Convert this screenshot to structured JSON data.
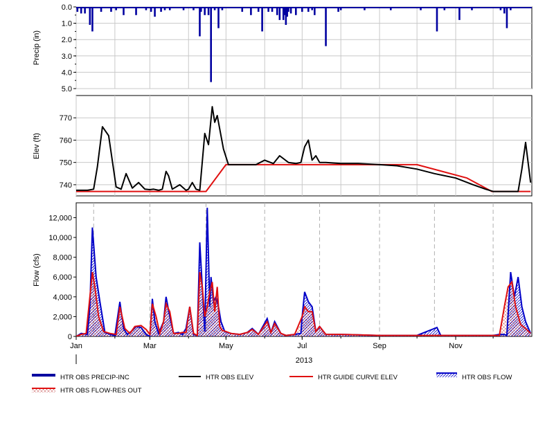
{
  "chart_data": [
    {
      "type": "bar",
      "id": "precip",
      "ylabel": "Precip (in)",
      "ylim": [
        5.0,
        0.0
      ],
      "yticks": [
        "0.0",
        "1.0",
        "2.0",
        "3.0",
        "4.0",
        "5.0"
      ],
      "ytick_values": [
        0,
        1,
        2,
        3,
        4,
        5
      ],
      "grid": true,
      "series": [
        {
          "name": "HTR OBS PRECIP-INC",
          "color": "#0000a0",
          "x": [
            "2013-01-02",
            "2013-01-05",
            "2013-01-08",
            "2013-01-12",
            "2013-01-14",
            "2013-01-21",
            "2013-01-29",
            "2013-02-02",
            "2013-02-08",
            "2013-02-18",
            "2013-02-26",
            "2013-03-02",
            "2013-03-05",
            "2013-03-10",
            "2013-03-13",
            "2013-03-17",
            "2013-03-28",
            "2013-04-05",
            "2013-04-10",
            "2013-04-11",
            "2013-04-14",
            "2013-04-17",
            "2013-04-19",
            "2013-04-22",
            "2013-04-25",
            "2013-04-28",
            "2013-05-14",
            "2013-05-21",
            "2013-05-27",
            "2013-05-30",
            "2013-06-04",
            "2013-06-07",
            "2013-06-11",
            "2013-06-13",
            "2013-06-16",
            "2013-06-17",
            "2013-06-18",
            "2013-06-19",
            "2013-06-20",
            "2013-06-22",
            "2013-06-26",
            "2013-07-01",
            "2013-07-06",
            "2013-07-09",
            "2013-07-11",
            "2013-07-20",
            "2013-07-30",
            "2013-08-01",
            "2013-08-20",
            "2013-09-10",
            "2013-10-04",
            "2013-10-17",
            "2013-10-23",
            "2013-11-04",
            "2013-11-14",
            "2013-12-07",
            "2013-12-10",
            "2013-12-12",
            "2013-12-15"
          ],
          "values": [
            0.3,
            0.4,
            0.4,
            1.1,
            1.5,
            0.3,
            0.3,
            0.2,
            0.5,
            0.5,
            0.2,
            0.3,
            0.6,
            0.3,
            0.2,
            0.2,
            0.2,
            0.2,
            1.8,
            0.3,
            0.5,
            0.5,
            4.6,
            0.2,
            1.3,
            0.2,
            0.3,
            0.5,
            0.3,
            1.5,
            0.3,
            0.3,
            0.5,
            0.8,
            0.8,
            0.5,
            1.1,
            0.6,
            0.3,
            0.4,
            0.5,
            0.3,
            0.3,
            0.2,
            0.5,
            2.4,
            0.3,
            0.2,
            0.2,
            0.2,
            0.2,
            1.5,
            0.2,
            0.8,
            0.2,
            0.2,
            0.4,
            1.3,
            0.2
          ]
        }
      ]
    },
    {
      "type": "line",
      "id": "elev",
      "ylabel": "Elev (ft)",
      "ylim": [
        735,
        780
      ],
      "yticks": [
        "740",
        "750",
        "760",
        "770"
      ],
      "ytick_values": [
        740,
        750,
        760,
        770
      ],
      "grid": true,
      "series": [
        {
          "name": "HTR OBS ELEV",
          "color": "#000000",
          "x": [
            "2013-01-01",
            "2013-01-06",
            "2013-01-10",
            "2013-01-15",
            "2013-01-18",
            "2013-01-22",
            "2013-01-27",
            "2013-02-02",
            "2013-02-06",
            "2013-02-10",
            "2013-02-15",
            "2013-02-20",
            "2013-02-25",
            "2013-03-01",
            "2013-03-04",
            "2013-03-08",
            "2013-03-11",
            "2013-03-14",
            "2013-03-16",
            "2013-03-19",
            "2013-03-25",
            "2013-03-30",
            "2013-04-01",
            "2013-04-04",
            "2013-04-07",
            "2013-04-10",
            "2013-04-14",
            "2013-04-17",
            "2013-04-20",
            "2013-04-22",
            "2013-04-24",
            "2013-04-26",
            "2013-04-29",
            "2013-05-03",
            "2013-05-10",
            "2013-05-15",
            "2013-05-25",
            "2013-06-01",
            "2013-06-08",
            "2013-06-13",
            "2013-06-20",
            "2013-06-26",
            "2013-06-30",
            "2013-07-03",
            "2013-07-06",
            "2013-07-09",
            "2013-07-12",
            "2013-07-15",
            "2013-07-20",
            "2013-08-01",
            "2013-08-15",
            "2013-09-01",
            "2013-09-15",
            "2013-10-01",
            "2013-10-15",
            "2013-11-01",
            "2013-11-15",
            "2013-11-25",
            "2013-12-01",
            "2013-12-15",
            "2013-12-18",
            "2013-12-21",
            "2013-12-24",
            "2013-12-27",
            "2013-12-31"
          ],
          "values": [
            737.5,
            737.5,
            737.5,
            738,
            748,
            766,
            762,
            739,
            738,
            745,
            738.5,
            741,
            738,
            737.8,
            738,
            737.5,
            738,
            746,
            744,
            738,
            740,
            737.5,
            738,
            741,
            738,
            737.5,
            763,
            758,
            775,
            768,
            771,
            765,
            756,
            749,
            749,
            749,
            749,
            751,
            749.5,
            753,
            750,
            749.5,
            750,
            757,
            760,
            751,
            753,
            750,
            750,
            749.5,
            749.5,
            749,
            748.5,
            747,
            745,
            743,
            740,
            738,
            737,
            737,
            737,
            737,
            747,
            759,
            741
          ]
        },
        {
          "name": "HTR GUIDE CURVE ELEV",
          "color": "#e01010",
          "x": [
            "2013-01-01",
            "2013-04-15",
            "2013-05-01",
            "2013-10-01",
            "2013-11-10",
            "2013-11-30",
            "2013-12-31"
          ],
          "values": [
            737,
            737,
            749,
            749,
            743,
            737,
            737
          ]
        }
      ]
    },
    {
      "type": "area",
      "id": "flow",
      "ylabel": "Flow (cfs)",
      "xlabel": "2013",
      "ylim": [
        0,
        13500
      ],
      "yticks": [
        "0",
        "2,000",
        "4,000",
        "6,000",
        "8,000",
        "10,000",
        "12,000"
      ],
      "ytick_values": [
        0,
        2000,
        4000,
        6000,
        8000,
        10000,
        12000
      ],
      "xticks": [
        "Jan",
        "Mar",
        "May",
        "Jul",
        "Sep",
        "Nov"
      ],
      "xtick_values": [
        "2013-01-01",
        "2013-03-01",
        "2013-05-01",
        "2013-07-01",
        "2013-09-01",
        "2013-11-01"
      ],
      "grid": "dashed-vertical",
      "series": [
        {
          "name": "HTR OBS FLOW",
          "color": "#0000c8",
          "x": [
            "2013-01-01",
            "2013-01-05",
            "2013-01-10",
            "2013-01-12",
            "2013-01-14",
            "2013-01-17",
            "2013-01-20",
            "2013-01-24",
            "2013-01-28",
            "2013-02-01",
            "2013-02-05",
            "2013-02-08",
            "2013-02-11",
            "2013-02-14",
            "2013-02-18",
            "2013-02-22",
            "2013-02-26",
            "2013-03-01",
            "2013-03-03",
            "2013-03-05",
            "2013-03-08",
            "2013-03-12",
            "2013-03-14",
            "2013-03-17",
            "2013-03-20",
            "2013-03-24",
            "2013-03-27",
            "2013-03-30",
            "2013-04-02",
            "2013-04-05",
            "2013-04-08",
            "2013-04-10",
            "2013-04-12",
            "2013-04-14",
            "2013-04-16",
            "2013-04-18",
            "2013-04-19",
            "2013-04-21",
            "2013-04-23",
            "2013-04-25",
            "2013-04-27",
            "2013-04-30",
            "2013-05-05",
            "2013-05-12",
            "2013-05-18",
            "2013-05-22",
            "2013-05-27",
            "2013-06-03",
            "2013-06-06",
            "2013-06-09",
            "2013-06-14",
            "2013-06-18",
            "2013-06-25",
            "2013-06-30",
            "2013-07-01",
            "2013-07-03",
            "2013-07-06",
            "2013-07-09",
            "2013-07-12",
            "2013-07-15",
            "2013-07-20",
            "2013-08-01",
            "2013-09-01",
            "2013-10-01",
            "2013-10-17",
            "2013-10-20",
            "2013-11-01",
            "2013-12-01",
            "2013-12-06",
            "2013-12-10",
            "2013-12-12",
            "2013-12-15",
            "2013-12-18",
            "2013-12-21",
            "2013-12-24",
            "2013-12-27",
            "2013-12-31"
          ],
          "values": [
            0,
            300,
            200,
            3000,
            11000,
            6000,
            3500,
            400,
            200,
            100,
            3500,
            800,
            200,
            500,
            1000,
            900,
            200,
            0,
            3800,
            1500,
            300,
            1500,
            4000,
            2000,
            300,
            400,
            200,
            800,
            3000,
            200,
            100,
            9500,
            5000,
            500,
            13000,
            3000,
            6000,
            3500,
            4000,
            3000,
            1500,
            500,
            300,
            200,
            400,
            800,
            200,
            1800,
            400,
            1500,
            300,
            100,
            200,
            300,
            2000,
            4500,
            3500,
            3000,
            500,
            1000,
            200,
            200,
            100,
            100,
            900,
            100,
            100,
            100,
            200,
            200,
            100,
            6500,
            4000,
            6000,
            3000,
            1500,
            300
          ]
        },
        {
          "name": "HTR OBS FLOW-RES OUT",
          "color": "#e01010",
          "x": [
            "2013-01-01",
            "2013-01-05",
            "2013-01-09",
            "2013-01-12",
            "2013-01-14",
            "2013-01-16",
            "2013-01-19",
            "2013-01-23",
            "2013-01-28",
            "2013-02-02",
            "2013-02-05",
            "2013-02-09",
            "2013-02-13",
            "2013-02-17",
            "2013-02-22",
            "2013-02-26",
            "2013-03-01",
            "2013-03-03",
            "2013-03-06",
            "2013-03-09",
            "2013-03-12",
            "2013-03-14",
            "2013-03-17",
            "2013-03-20",
            "2013-03-24",
            "2013-03-27",
            "2013-03-30",
            "2013-04-02",
            "2013-04-05",
            "2013-04-08",
            "2013-04-10",
            "2013-04-12",
            "2013-04-14",
            "2013-04-16",
            "2013-04-18",
            "2013-04-20",
            "2013-04-22",
            "2013-04-24",
            "2013-04-26",
            "2013-04-28",
            "2013-05-01",
            "2013-05-05",
            "2013-05-12",
            "2013-05-18",
            "2013-05-22",
            "2013-05-27",
            "2013-06-03",
            "2013-06-06",
            "2013-06-09",
            "2013-06-14",
            "2013-06-18",
            "2013-06-25",
            "2013-07-01",
            "2013-07-03",
            "2013-07-06",
            "2013-07-09",
            "2013-07-12",
            "2013-07-15",
            "2013-07-20",
            "2013-08-01",
            "2013-09-01",
            "2013-10-01",
            "2013-11-01",
            "2013-12-01",
            "2013-12-06",
            "2013-12-10",
            "2013-12-13",
            "2013-12-16",
            "2013-12-19",
            "2013-12-23",
            "2013-12-27",
            "2013-12-31"
          ],
          "values": [
            0,
            200,
            300,
            4000,
            6500,
            5000,
            2000,
            500,
            300,
            200,
            3000,
            800,
            300,
            1000,
            1100,
            700,
            200,
            3300,
            2000,
            300,
            1500,
            3300,
            2500,
            300,
            300,
            400,
            400,
            3000,
            300,
            100,
            6500,
            5000,
            2000,
            3000,
            4500,
            5500,
            2500,
            5000,
            1000,
            600,
            500,
            300,
            200,
            400,
            700,
            200,
            1500,
            400,
            1300,
            300,
            100,
            200,
            2000,
            3000,
            2500,
            2500,
            500,
            1000,
            200,
            200,
            100,
            100,
            100,
            100,
            100,
            3000,
            5000,
            5500,
            3000,
            1200,
            800,
            300
          ]
        }
      ]
    }
  ],
  "legend": [
    {
      "label": "HTR OBS PRECIP-INC",
      "kind": "thick-bar",
      "color": "#0000a0"
    },
    {
      "label": "HTR OBS ELEV",
      "kind": "line",
      "color": "#000000"
    },
    {
      "label": "HTR GUIDE CURVE ELEV",
      "kind": "line",
      "color": "#e01010"
    },
    {
      "label": "HTR OBS FLOW",
      "kind": "area-hatch",
      "color": "#0000c8"
    },
    {
      "label": "HTR OBS FLOW-RES OUT",
      "kind": "area-crosshatch",
      "color": "#e01010"
    }
  ]
}
